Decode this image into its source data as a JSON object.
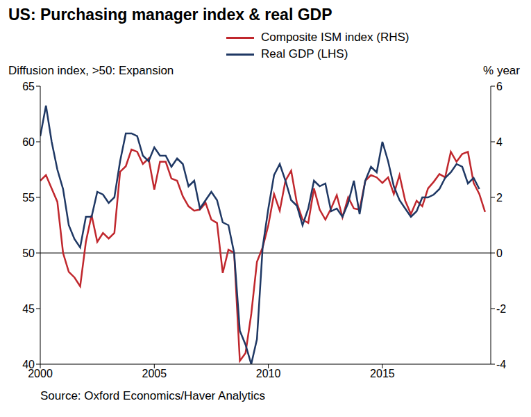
{
  "chart_data": {
    "type": "line",
    "title": "US: Purchasing manager index & real GDP",
    "ylabel": "Diffusion index, >50: Expansion",
    "y2label": "% year",
    "source": "Source: Oxford Economics/Haver Analytics",
    "x": [
      2000,
      2000.25,
      2000.5,
      2000.75,
      2001,
      2001.25,
      2001.5,
      2001.75,
      2002,
      2002.25,
      2002.5,
      2002.75,
      2003,
      2003.25,
      2003.5,
      2003.75,
      2004,
      2004.25,
      2004.5,
      2004.75,
      2005,
      2005.25,
      2005.5,
      2005.75,
      2006,
      2006.25,
      2006.5,
      2006.75,
      2007,
      2007.25,
      2007.5,
      2007.75,
      2008,
      2008.25,
      2008.5,
      2008.75,
      2009,
      2009.25,
      2009.5,
      2009.75,
      2010,
      2010.25,
      2010.5,
      2010.75,
      2011,
      2011.25,
      2011.5,
      2011.75,
      2012,
      2012.25,
      2012.5,
      2012.75,
      2013,
      2013.25,
      2013.5,
      2013.75,
      2014,
      2014.25,
      2014.5,
      2014.75,
      2015,
      2015.25,
      2015.5,
      2015.75,
      2016,
      2016.25,
      2016.5,
      2016.75,
      2017,
      2017.25,
      2017.5,
      2017.75,
      2018,
      2018.25,
      2018.5,
      2018.75,
      2019,
      2019.25,
      2019.5
    ],
    "series": [
      {
        "name": "Composite ISM index (RHS)",
        "color": "#c0272d",
        "values": [
          56.5,
          57.0,
          55.8,
          54.6,
          50.0,
          48.3,
          47.8,
          47.0,
          51.0,
          53.4,
          51.0,
          51.8,
          51.3,
          51.8,
          57.3,
          57.8,
          59.3,
          59.1,
          58.0,
          58.5,
          55.7,
          58.2,
          58.2,
          56.7,
          56.5,
          55.1,
          54.2,
          53.8,
          53.9,
          54.5,
          53.0,
          52.7,
          48.2,
          50.3,
          50.0,
          40.3,
          41.0,
          44.5,
          49.2,
          50.5,
          52.5,
          55.3,
          53.8,
          56.5,
          57.4,
          54.5,
          53.0,
          52.7,
          55.8,
          53.9,
          53.0,
          54.0,
          55.2,
          53.2,
          55.0,
          54.0,
          53.9,
          56.5,
          57.0,
          56.8,
          56.3,
          56.8,
          55.3,
          57.0,
          54.7,
          53.5,
          54.7,
          54.2,
          55.8,
          56.4,
          57.1,
          56.8,
          59.1,
          58.2,
          58.9,
          59.1,
          56.3,
          55.3,
          53.7
        ]
      },
      {
        "name": "Real GDP (LHS)",
        "color": "#1f3864",
        "axis": "y2",
        "values": [
          4.2,
          5.3,
          4.0,
          3.0,
          2.3,
          1.0,
          0.5,
          0.2,
          1.3,
          1.3,
          2.2,
          2.1,
          1.8,
          2.0,
          3.3,
          4.3,
          4.3,
          4.2,
          3.5,
          3.3,
          3.8,
          3.5,
          3.5,
          3.1,
          3.4,
          3.2,
          2.4,
          2.6,
          1.6,
          1.9,
          2.2,
          1.9,
          1.1,
          1.0,
          0.0,
          -2.8,
          -3.3,
          -4.0,
          -3.1,
          0.2,
          1.6,
          2.8,
          3.2,
          2.6,
          1.9,
          1.7,
          1.0,
          1.6,
          2.6,
          2.4,
          2.5,
          1.5,
          1.6,
          1.3,
          1.8,
          2.6,
          1.4,
          2.6,
          3.1,
          2.9,
          4.0,
          3.3,
          2.4,
          1.9,
          1.6,
          1.3,
          1.5,
          2.0,
          2.0,
          2.1,
          2.3,
          2.7,
          2.9,
          3.2,
          3.1,
          2.5,
          2.7,
          2.3,
          null
        ]
      }
    ],
    "xlim": [
      2000,
      2019.75
    ],
    "xticks": [
      2000,
      2005,
      2010,
      2015
    ],
    "ylim": [
      40,
      65
    ],
    "yticks": [
      40,
      45,
      50,
      55,
      60,
      65
    ],
    "y2lim": [
      -4,
      6
    ],
    "y2ticks": [
      -4,
      -2,
      0,
      2,
      4,
      6
    ],
    "hline": 50,
    "grid": false
  }
}
